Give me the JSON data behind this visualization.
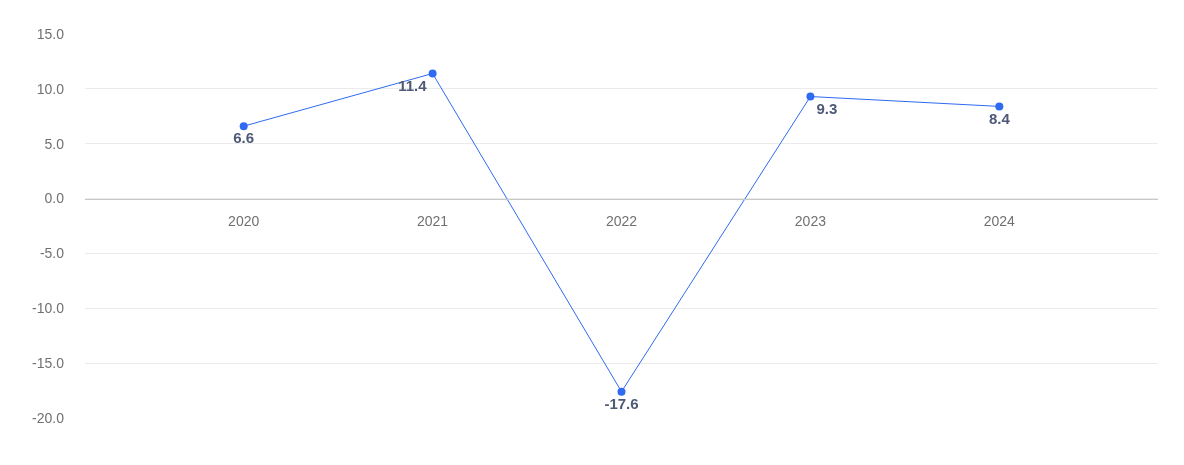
{
  "chart_data": {
    "type": "line",
    "categories": [
      "2020",
      "2021",
      "2022",
      "2023",
      "2024"
    ],
    "series": [
      {
        "color": "#2f6bf0",
        "values": [
          6.6,
          11.4,
          -17.6,
          9.3,
          8.4
        ]
      }
    ],
    "ylim": [
      -20,
      15
    ],
    "yticks": [
      {
        "value": -20,
        "label": "-20.0"
      },
      {
        "value": -15,
        "label": "-15.0"
      },
      {
        "value": -10,
        "label": "-10.0"
      },
      {
        "value": -5,
        "label": "-5.0"
      },
      {
        "value": 0,
        "label": "0.0"
      },
      {
        "value": 5,
        "label": "5.0"
      },
      {
        "value": 10,
        "label": "10.0"
      },
      {
        "value": 15,
        "label": "15.0"
      }
    ],
    "grid": "y",
    "marker": "circle",
    "line_style": "solid",
    "data_labels": true
  }
}
